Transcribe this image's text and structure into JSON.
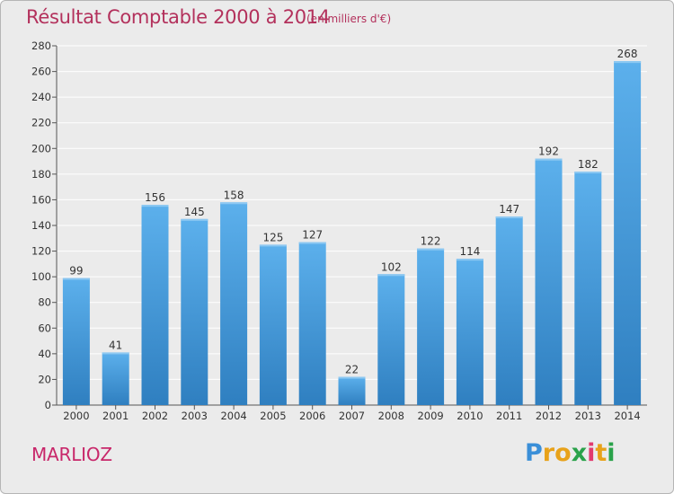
{
  "chart_data": {
    "type": "bar",
    "title": "Résultat Comptable 2000 à 2014",
    "subtitle": "(en milliers d'€)",
    "categories": [
      "2000",
      "2001",
      "2002",
      "2003",
      "2004",
      "2005",
      "2006",
      "2007",
      "2008",
      "2009",
      "2010",
      "2011",
      "2012",
      "2013",
      "2014"
    ],
    "values": [
      99,
      41,
      156,
      145,
      158,
      125,
      127,
      22,
      102,
      122,
      114,
      147,
      192,
      182,
      268
    ],
    "ylim": [
      0,
      280
    ],
    "yticks": [
      0,
      20,
      40,
      60,
      80,
      100,
      120,
      140,
      160,
      180,
      200,
      220,
      240,
      260,
      280
    ],
    "grid": true,
    "bar_color": "#4a9fdf",
    "xlabel": "",
    "ylabel": ""
  },
  "commune": "MARLIOZ",
  "logo": {
    "letters": [
      "P",
      "r",
      "o",
      "x",
      "i",
      "t",
      "i"
    ],
    "colors": [
      "#3a8fd8",
      "#e8a21a",
      "#e8a21a",
      "#2aa24a",
      "#e23a6e",
      "#e8a21a",
      "#2aa24a"
    ]
  }
}
